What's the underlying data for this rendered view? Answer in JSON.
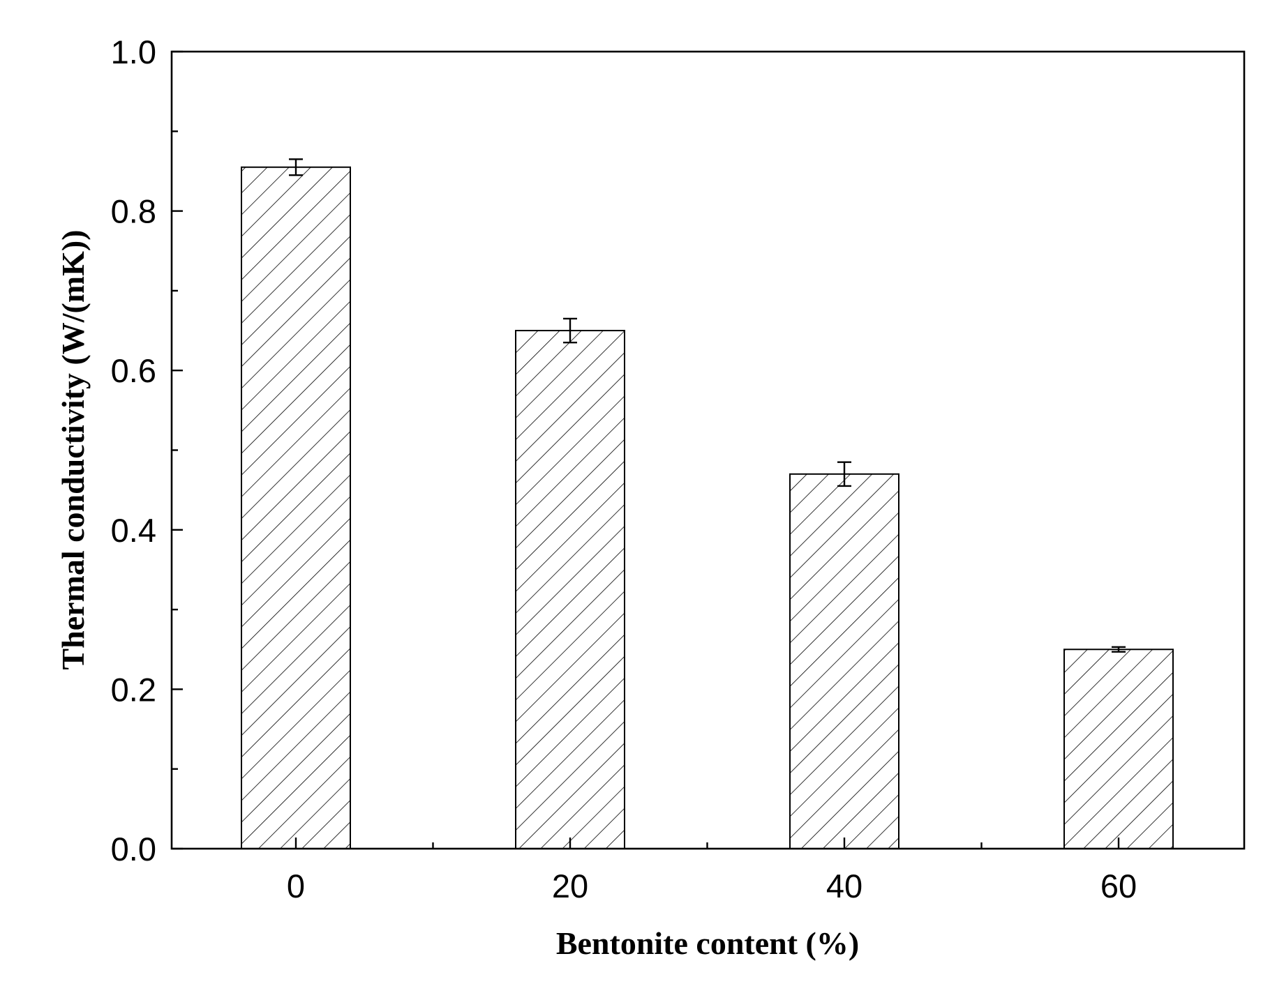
{
  "chart_data": {
    "type": "bar",
    "x_label": "Bentonite content (%)",
    "y_label": "Thermal conductivity (W/(mK))",
    "categories": [
      "0",
      "20",
      "40",
      "60"
    ],
    "values": [
      0.855,
      0.65,
      0.47,
      0.25
    ],
    "errors": [
      0.01,
      0.015,
      0.015,
      0.003
    ],
    "color": "#ffffff",
    "hatch": "diagonal",
    "ylim": [
      0,
      1.0
    ],
    "yticks": [
      {
        "value": 0,
        "label": "0.0"
      },
      0.2,
      0.4,
      0.6,
      0.8,
      {
        "value": 1.0,
        "label": "1.0"
      }
    ],
    "yminorticks": [
      0.1,
      0.3,
      0.5,
      0.7,
      0.9
    ]
  }
}
